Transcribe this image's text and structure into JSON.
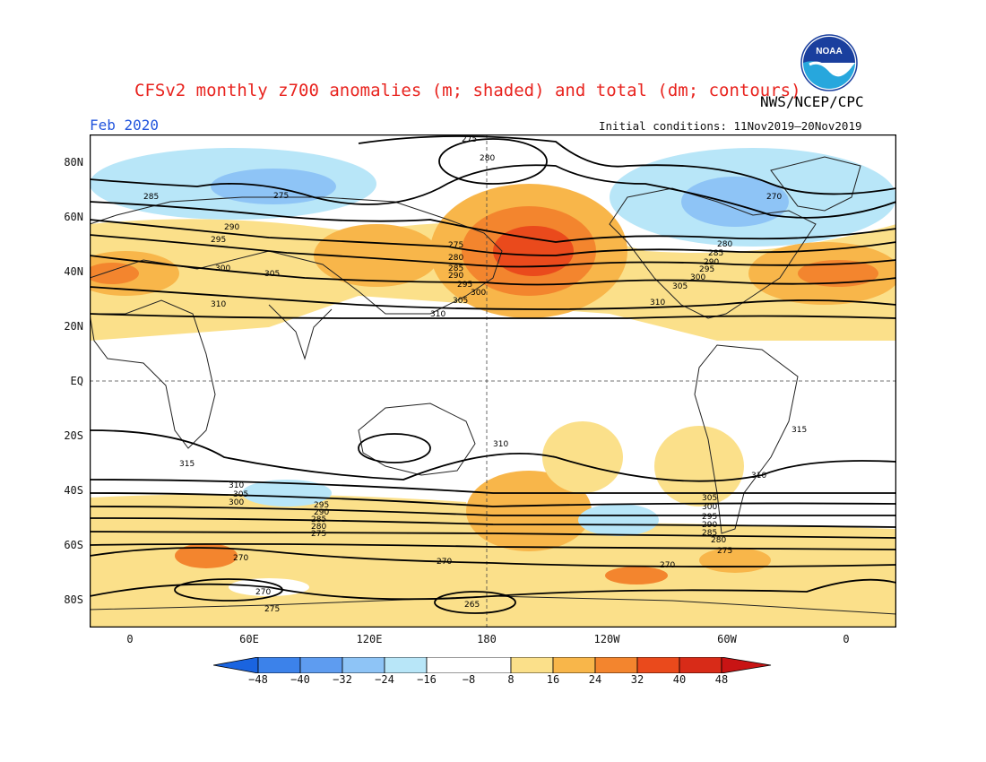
{
  "header": {
    "title": "CFSv2 monthly z700 anomalies (m; shaded) and total (dm; contours)",
    "agency": "NWS/NCEP/CPC",
    "valid_month": "Feb 2020",
    "initial_conditions": "Initial conditions: 11Nov2019–20Nov2019",
    "logo_text": "NOAA"
  },
  "axes": {
    "lat_labels": [
      "80N",
      "60N",
      "40N",
      "20N",
      "EQ",
      "20S",
      "40S",
      "60S",
      "80S"
    ],
    "lon_labels": [
      "0",
      "60E",
      "120E",
      "180",
      "120W",
      "60W",
      "0"
    ]
  },
  "colorbar": {
    "ticks": [
      "−48",
      "−40",
      "−32",
      "−24",
      "−16",
      "−8",
      "8",
      "16",
      "24",
      "32",
      "40",
      "48"
    ],
    "colors": [
      "#1a64e0",
      "#3c82ea",
      "#5e9cf0",
      "#8ec4f6",
      "#b8e6f8",
      "#ffffff",
      "#ffffff",
      "#fbe08a",
      "#f8b64a",
      "#f3852e",
      "#ea4a1c",
      "#c81414"
    ]
  },
  "contour_labels": [
    "275",
    "280",
    "285",
    "290",
    "295",
    "300",
    "305",
    "310",
    "315",
    "275",
    "270",
    "265",
    "270",
    "275",
    "280",
    "285",
    "290",
    "295",
    "300",
    "305",
    "310",
    "310",
    "275",
    "270",
    "310",
    "305",
    "300",
    "295",
    "290",
    "285",
    "280",
    "275",
    "270",
    "280",
    "285",
    "290",
    "295",
    "300",
    "305",
    "310",
    "315",
    "310",
    "305",
    "300",
    "295",
    "290",
    "285",
    "280",
    "275",
    "270"
  ]
}
